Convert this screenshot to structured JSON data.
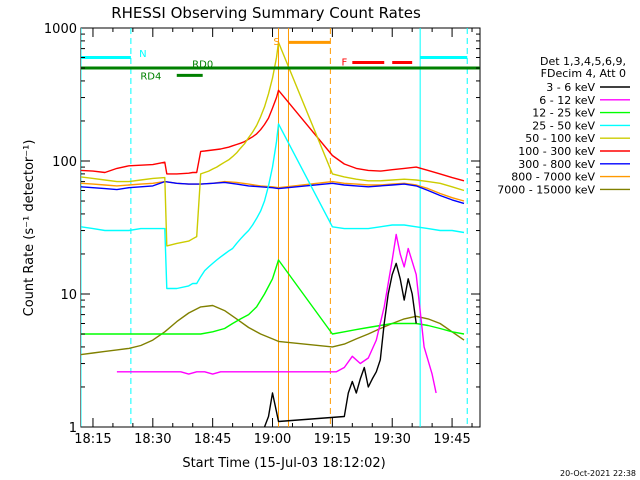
{
  "chart_data": {
    "type": "line",
    "title": "RHESSI Observing Summary Count Rates",
    "xlabel": "Start Time (15-Jul-03 18:12:02)",
    "ylabel": "Count Rate (s⁻¹ detector⁻¹)",
    "yscale": "log",
    "ylim": [
      1,
      1000
    ],
    "xlim": [
      12.0,
      112.0
    ],
    "x_units": "minutes after 18:00",
    "x_ticks": [
      {
        "v": 15,
        "label": "18:15"
      },
      {
        "v": 30,
        "label": "18:30"
      },
      {
        "v": 45,
        "label": "18:45"
      },
      {
        "v": 60,
        "label": "19:00"
      },
      {
        "v": 75,
        "label": "19:15"
      },
      {
        "v": 90,
        "label": "19:30"
      },
      {
        "v": 105,
        "label": "19:45"
      }
    ],
    "y_ticks": [
      {
        "v": 1,
        "label": "1"
      },
      {
        "v": 10,
        "label": "10"
      },
      {
        "v": 100,
        "label": "100"
      },
      {
        "v": 1000,
        "label": "1000"
      }
    ],
    "legend_header": [
      "Det 1,3,4,5,6,9,",
      "FDecim 4, Att 0"
    ],
    "legend_position": "right",
    "series": [
      {
        "name": "3 - 6 keV",
        "color": "#000000",
        "x": [
          58,
          59,
          60,
          61,
          61.5,
          78,
          79,
          80,
          81,
          82,
          83,
          84,
          85,
          86,
          87,
          88,
          89,
          90,
          91,
          92,
          93,
          94,
          95,
          96
        ],
        "y": [
          1,
          1.2,
          1.8,
          1.3,
          1.1,
          1.2,
          1.8,
          2.2,
          1.8,
          2.3,
          2.8,
          2.0,
          2.3,
          2.6,
          3.2,
          6,
          10,
          14,
          17,
          13,
          9,
          13,
          10,
          6
        ]
      },
      {
        "name": "6 - 12 keV",
        "color": "#ff00ff",
        "x": [
          21,
          23,
          25,
          27,
          29,
          31,
          33,
          35,
          37,
          39,
          41,
          43,
          45,
          47,
          49,
          51,
          53,
          55,
          57,
          59,
          61,
          63,
          76,
          78,
          80,
          82,
          84,
          86,
          88,
          90,
          91,
          92,
          93,
          94,
          96,
          98,
          100,
          101
        ],
        "y": [
          2.6,
          2.6,
          2.6,
          2.6,
          2.6,
          2.6,
          2.6,
          2.6,
          2.6,
          2.5,
          2.6,
          2.6,
          2.5,
          2.6,
          2.6,
          2.6,
          2.6,
          2.6,
          2.6,
          2.6,
          2.6,
          2.6,
          2.6,
          2.8,
          3.4,
          3.0,
          3.3,
          4.5,
          8,
          18,
          28,
          20,
          16,
          22,
          14,
          4,
          2.5,
          1.8
        ]
      },
      {
        "name": "12 - 25 keV",
        "color": "#00ff00",
        "x": [
          12,
          15,
          18,
          21,
          24,
          27,
          30,
          33,
          36,
          39,
          42,
          45,
          48,
          50,
          52,
          54,
          56,
          58,
          60,
          61.5,
          75,
          78,
          81,
          84,
          87,
          90,
          93,
          96,
          99,
          102,
          105,
          108
        ],
        "y": [
          5,
          5,
          5,
          5,
          5,
          5,
          5,
          5,
          5,
          5,
          5,
          5.2,
          5.5,
          6,
          6.5,
          7,
          8,
          10,
          13,
          18,
          5,
          5.2,
          5.4,
          5.6,
          5.8,
          6,
          6,
          6,
          5.8,
          5.5,
          5.2,
          5
        ]
      },
      {
        "name": "25 - 50 keV",
        "color": "#00ffff",
        "x": [
          12,
          15,
          18,
          21,
          24,
          27,
          30,
          33,
          33.5,
          36,
          39,
          40,
          41,
          42,
          43,
          44,
          45,
          46,
          47,
          48,
          49,
          50,
          51,
          52,
          53,
          54,
          55,
          56,
          57,
          58,
          59,
          60,
          61,
          61.5,
          75,
          78,
          81,
          84,
          87,
          90,
          93,
          96,
          99,
          102,
          105,
          108
        ],
        "y": [
          32,
          31,
          30,
          30,
          30,
          31,
          31,
          31,
          11,
          11,
          11.5,
          12,
          12,
          13.5,
          15,
          16,
          17,
          18,
          19,
          20,
          21,
          22,
          24,
          26,
          28,
          30,
          33,
          37,
          42,
          50,
          65,
          90,
          140,
          190,
          32,
          31,
          31,
          31,
          32,
          33,
          33,
          32,
          31,
          30,
          30,
          29
        ]
      },
      {
        "name": "50 - 100 keV",
        "color": "#cccc00",
        "x": [
          12,
          15,
          18,
          21,
          24,
          27,
          30,
          33,
          33.5,
          36,
          39,
          40,
          41,
          42,
          43,
          44,
          45,
          46,
          47,
          48,
          49,
          50,
          51,
          52,
          53,
          54,
          55,
          56,
          57,
          58,
          59,
          60,
          61,
          61.5,
          75,
          78,
          81,
          84,
          87,
          90,
          93,
          96,
          99,
          102,
          105,
          108
        ],
        "y": [
          76,
          74,
          72,
          70,
          70,
          72,
          74,
          75,
          23,
          24,
          25,
          26,
          27,
          80,
          82,
          84,
          87,
          90,
          94,
          98,
          102,
          108,
          115,
          125,
          135,
          150,
          165,
          185,
          215,
          255,
          320,
          420,
          600,
          780,
          80,
          76,
          73,
          71,
          71,
          72,
          73,
          72,
          70,
          68,
          64,
          60
        ]
      },
      {
        "name": "100 - 300 keV",
        "color": "#ff0000",
        "x": [
          12,
          15,
          18,
          21,
          24,
          27,
          30,
          33,
          33.5,
          36,
          39,
          40,
          41,
          42,
          43,
          44,
          45,
          46,
          47,
          48,
          49,
          50,
          51,
          52,
          53,
          54,
          55,
          56,
          57,
          58,
          59,
          60,
          61,
          61.5,
          75,
          78,
          81,
          84,
          87,
          90,
          93,
          96,
          99,
          102,
          105,
          108
        ],
        "y": [
          85,
          84,
          82,
          88,
          92,
          93,
          94,
          98,
          80,
          80,
          81,
          82,
          82,
          118,
          119,
          120,
          121,
          122,
          123,
          125,
          127,
          130,
          133,
          136,
          140,
          146,
          152,
          160,
          172,
          188,
          210,
          250,
          300,
          340,
          110,
          95,
          88,
          85,
          84,
          86,
          88,
          90,
          85,
          80,
          75,
          71
        ]
      },
      {
        "name": "300 - 800 keV",
        "color": "#0000ff",
        "x": [
          12,
          15,
          18,
          21,
          24,
          27,
          30,
          33,
          36,
          39,
          42,
          45,
          48,
          51,
          54,
          57,
          60,
          61.5,
          75,
          78,
          81,
          84,
          87,
          90,
          93,
          96,
          99,
          102,
          105,
          108
        ],
        "y": [
          64,
          63,
          62,
          61,
          63,
          64,
          65,
          70,
          68,
          67,
          67,
          68,
          69,
          67,
          65,
          64,
          63,
          62,
          68,
          66,
          65,
          64,
          65,
          66,
          67,
          65,
          60,
          55,
          51,
          48
        ]
      },
      {
        "name": "800 - 7000 keV",
        "color": "#ff9900",
        "x": [
          12,
          15,
          18,
          21,
          24,
          27,
          30,
          33,
          36,
          39,
          42,
          45,
          48,
          51,
          54,
          57,
          60,
          61.5,
          75,
          78,
          81,
          84,
          87,
          90,
          93,
          96,
          99,
          102,
          105,
          108
        ],
        "y": [
          68,
          67,
          66,
          65,
          66,
          67,
          68,
          70,
          68,
          67,
          67,
          68,
          70,
          69,
          67,
          65,
          64,
          63,
          70,
          68,
          67,
          66,
          66,
          67,
          68,
          66,
          62,
          57,
          53,
          50
        ]
      },
      {
        "name": "7000 - 15000 keV",
        "color": "#808000",
        "x": [
          12,
          15,
          18,
          21,
          24,
          27,
          30,
          33,
          36,
          39,
          42,
          45,
          48,
          51,
          54,
          57,
          60,
          61.5,
          75,
          78,
          81,
          84,
          87,
          90,
          93,
          96,
          99,
          102,
          105,
          108
        ],
        "y": [
          3.5,
          3.6,
          3.7,
          3.8,
          3.9,
          4.1,
          4.5,
          5.2,
          6.2,
          7.2,
          8.0,
          8.2,
          7.5,
          6.5,
          5.6,
          5.0,
          4.6,
          4.4,
          4.0,
          4.2,
          4.6,
          5.0,
          5.5,
          6.0,
          6.5,
          6.8,
          6.5,
          6.0,
          5.2,
          4.5
        ]
      }
    ],
    "vertical_lines": [
      {
        "x": 12.0,
        "color": "#00ffff",
        "style": "solid"
      },
      {
        "x": 24.5,
        "color": "#00ffff",
        "style": "dashed"
      },
      {
        "x": 61.5,
        "color": "#ff9900",
        "style": "solid"
      },
      {
        "x": 64.0,
        "color": "#ff9900",
        "style": "solid"
      },
      {
        "x": 74.5,
        "color": "#ff9900",
        "style": "dashed"
      },
      {
        "x": 97.0,
        "color": "#00ffff",
        "style": "solid"
      },
      {
        "x": 108.8,
        "color": "#00ffff",
        "style": "dashed"
      }
    ],
    "annotations": [
      {
        "id": "N",
        "label": "N",
        "color": "#00ffff",
        "label_x": 27.5,
        "label_y": 650,
        "segments": [
          [
            12,
            24.5,
            600
          ],
          [
            97,
            108.8,
            600
          ]
        ]
      },
      {
        "id": "SAA",
        "label": "S",
        "color": "#ff9900",
        "label_x": 61.0,
        "label_y": 800,
        "segments": [
          [
            64,
            74.5,
            780
          ]
        ]
      },
      {
        "id": "F",
        "label": "F",
        "color": "#ff0000",
        "label_x": 78.0,
        "label_y": 560,
        "segments": [
          [
            80,
            88,
            550
          ],
          [
            90,
            95,
            550
          ]
        ]
      },
      {
        "id": "RD0",
        "label": "RD0",
        "color": "#008000",
        "label_x": 42.5,
        "label_y": 540,
        "segments": [
          [
            12,
            112,
            500
          ]
        ]
      },
      {
        "id": "RD4",
        "label": "RD4",
        "color": "#008000",
        "label_x": 29.5,
        "label_y": 440,
        "segments": [
          [
            36,
            42.5,
            440
          ]
        ]
      }
    ],
    "timestamp": "20-Oct-2021 22:38"
  }
}
